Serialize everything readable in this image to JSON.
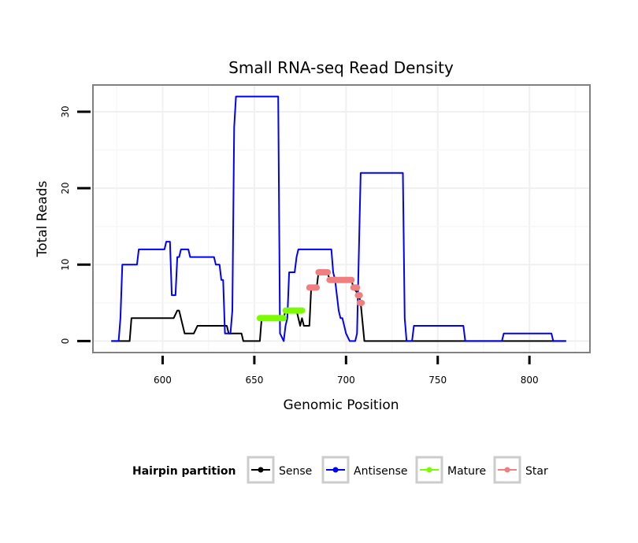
{
  "chart_data": {
    "type": "line",
    "title": "Small RNA-seq Read Density",
    "xlabel": "Genomic Position",
    "ylabel": "Total Reads",
    "xlim": [
      562,
      833
    ],
    "ylim": [
      -1.5,
      33.5
    ],
    "xticks": [
      600,
      650,
      700,
      750,
      800
    ],
    "yticks": [
      0,
      10,
      20,
      30
    ],
    "grid": true,
    "legend": {
      "title": "Hairpin partition",
      "position": "bottom"
    },
    "series": [
      {
        "name": "Sense",
        "color": "#000000",
        "style": "line",
        "points": [
          [
            572,
            0
          ],
          [
            582,
            0
          ],
          [
            583,
            3
          ],
          [
            606,
            3
          ],
          [
            608,
            4
          ],
          [
            609,
            4
          ],
          [
            612,
            1
          ],
          [
            617,
            1
          ],
          [
            619,
            2
          ],
          [
            635,
            2
          ],
          [
            636,
            1
          ],
          [
            643,
            1
          ],
          [
            644,
            0
          ],
          [
            653,
            0
          ],
          [
            654,
            3
          ],
          [
            666,
            3
          ],
          [
            667,
            4
          ],
          [
            673,
            4
          ],
          [
            675,
            2
          ],
          [
            676,
            3
          ],
          [
            677,
            2
          ],
          [
            680,
            2
          ],
          [
            681,
            7
          ],
          [
            684,
            7
          ],
          [
            685,
            9
          ],
          [
            690,
            9
          ],
          [
            691,
            8
          ],
          [
            703,
            8
          ],
          [
            704,
            7
          ],
          [
            707,
            6
          ],
          [
            708,
            5
          ],
          [
            710,
            0
          ],
          [
            820,
            0
          ]
        ]
      },
      {
        "name": "Antisense",
        "color": "#0000ff",
        "style": "line",
        "points": [
          [
            572,
            0
          ],
          [
            576,
            0
          ],
          [
            577,
            3
          ],
          [
            578,
            10
          ],
          [
            586,
            10
          ],
          [
            587,
            12
          ],
          [
            601,
            12
          ],
          [
            602,
            13
          ],
          [
            604,
            13
          ],
          [
            605,
            6
          ],
          [
            607,
            6
          ],
          [
            608,
            11
          ],
          [
            609,
            11
          ],
          [
            610,
            12
          ],
          [
            614,
            12
          ],
          [
            615,
            11
          ],
          [
            628,
            11
          ],
          [
            629,
            10
          ],
          [
            631,
            10
          ],
          [
            632,
            8
          ],
          [
            633,
            8
          ],
          [
            634,
            1
          ],
          [
            637,
            1
          ],
          [
            638,
            4
          ],
          [
            639,
            28
          ],
          [
            640,
            32
          ],
          [
            663,
            32
          ],
          [
            664,
            1
          ],
          [
            666,
            0
          ],
          [
            667,
            2
          ],
          [
            668,
            3
          ],
          [
            669,
            9
          ],
          [
            672,
            9
          ],
          [
            673,
            11
          ],
          [
            674,
            12
          ],
          [
            692,
            12
          ],
          [
            693,
            9
          ],
          [
            694,
            8
          ],
          [
            696,
            4
          ],
          [
            697,
            3
          ],
          [
            698,
            3
          ],
          [
            699,
            2
          ],
          [
            700,
            1
          ],
          [
            702,
            0
          ],
          [
            705,
            0
          ],
          [
            706,
            1
          ],
          [
            708,
            22
          ],
          [
            731,
            22
          ],
          [
            732,
            3
          ],
          [
            733,
            0
          ],
          [
            736,
            0
          ],
          [
            737,
            2
          ],
          [
            764,
            2
          ],
          [
            765,
            0
          ],
          [
            785,
            0
          ],
          [
            786,
            1
          ],
          [
            812,
            1
          ],
          [
            813,
            0
          ],
          [
            820,
            0
          ]
        ]
      },
      {
        "name": "Mature",
        "color": "#7cfc00",
        "style": "segments",
        "segments": [
          [
            [
              653,
              3
            ],
            [
              666,
              3
            ]
          ],
          [
            [
              667,
              4
            ],
            [
              676,
              4
            ]
          ]
        ]
      },
      {
        "name": "Star",
        "color": "#f08080",
        "style": "segments",
        "segments": [
          [
            [
              680,
              7
            ],
            [
              684,
              7
            ]
          ],
          [
            [
              685,
              9
            ],
            [
              690,
              9
            ]
          ],
          [
            [
              691,
              8
            ],
            [
              703,
              8
            ]
          ],
          [
            [
              704,
              7
            ],
            [
              706,
              7
            ]
          ],
          [
            [
              706.5,
              6
            ],
            [
              707.5,
              6
            ]
          ],
          [
            [
              707.5,
              5
            ],
            [
              708.5,
              5
            ]
          ]
        ]
      }
    ]
  }
}
